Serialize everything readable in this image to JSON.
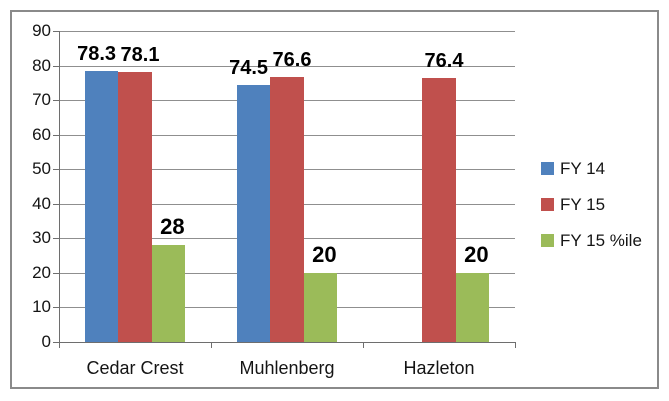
{
  "chart_data": {
    "type": "bar",
    "title": "",
    "xlabel": "",
    "ylabel": "",
    "categories": [
      "Cedar Crest",
      "Muhlenberg",
      "Hazleton"
    ],
    "series": [
      {
        "name": "FY 14",
        "color": "#4F81BD",
        "values": [
          78.3,
          74.5,
          null
        ],
        "labels": [
          "78.3",
          "74.5",
          ""
        ]
      },
      {
        "name": "FY 15",
        "color": "#C0504D",
        "values": [
          78.1,
          76.6,
          76.4
        ],
        "labels": [
          "78.1",
          "76.6",
          "76.4"
        ]
      },
      {
        "name": "FY 15 %ile",
        "color": "#9BBB59",
        "values": [
          28,
          20,
          20
        ],
        "labels": [
          "28",
          "20",
          "20"
        ]
      }
    ],
    "ylim": [
      0,
      90
    ],
    "yticks": [
      0,
      10,
      20,
      30,
      40,
      50,
      60,
      70,
      80,
      90
    ],
    "grid": true,
    "legend_position": "right"
  },
  "style_colors": {
    "gridline": "#8F8F8F",
    "axis": "#6E6E6E",
    "frame_border": "#8A8A8A",
    "label_text": "#141414",
    "data_label_text": "#000000"
  }
}
